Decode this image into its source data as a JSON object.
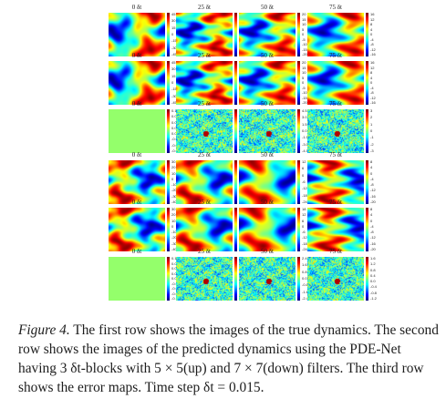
{
  "figure": {
    "time_labels": [
      "0 δt",
      "25 δt",
      "50 δt",
      "75 δt"
    ],
    "top_block": {
      "rows": [
        {
          "kind": "true",
          "panels": [
            {
              "scheme": "wave",
              "seed": 1,
              "ticks": [
                "45",
                "30",
                "15",
                "0",
                "-15",
                "-30",
                "-45"
              ]
            },
            {
              "scheme": "wave",
              "seed": 2,
              "ticks": [
                "24",
                "16",
                "8",
                "0",
                "-8",
                "-16",
                "-24",
                "-32"
              ]
            },
            {
              "scheme": "wave",
              "seed": 3,
              "ticks": [
                "20",
                "15",
                "10",
                "5",
                "0",
                "-5",
                "-10",
                "-15",
                "-20"
              ]
            },
            {
              "scheme": "wave",
              "seed": 4,
              "ticks": [
                "16",
                "12",
                "8",
                "4",
                "0",
                "-4",
                "-8",
                "-12",
                "-16"
              ]
            }
          ]
        },
        {
          "kind": "predicted",
          "panels": [
            {
              "scheme": "wave",
              "seed": 1,
              "ticks": [
                "45",
                "30",
                "15",
                "0",
                "-15",
                "-30",
                "-45"
              ]
            },
            {
              "scheme": "wave",
              "seed": 2,
              "ticks": [
                "24",
                "16",
                "8",
                "0",
                "-8",
                "-16",
                "-24",
                "-32"
              ]
            },
            {
              "scheme": "wave",
              "seed": 3,
              "ticks": [
                "20",
                "15",
                "10",
                "5",
                "0",
                "-5",
                "-10",
                "-15",
                "-20"
              ]
            },
            {
              "scheme": "wave",
              "seed": 4,
              "ticks": [
                "16",
                "12",
                "8",
                "4",
                "0",
                "-4",
                "-8",
                "-12",
                "-16"
              ]
            }
          ]
        },
        {
          "kind": "error",
          "panels": [
            {
              "scheme": "flat",
              "seed": 0,
              "ticks": [
                "0.100",
                "0.075",
                "0.050",
                "0.025",
                "0.000",
                "-0.025",
                "-0.050",
                "-0.075"
              ]
            },
            {
              "scheme": "noise",
              "seed": 5,
              "ticks": [
                "3",
                "2",
                "1",
                "0",
                "-1",
                "-2",
                "-3"
              ]
            },
            {
              "scheme": "noise",
              "seed": 6,
              "ticks": [
                "4.5",
                "3.0",
                "1.5",
                "0.0",
                "-1.5",
                "-3.0",
                "-4.5"
              ]
            },
            {
              "scheme": "noise",
              "seed": 7,
              "ticks": [
                "3",
                "2",
                "1",
                "0",
                "-1",
                "-2",
                "-3"
              ]
            }
          ]
        }
      ]
    },
    "bottom_block": {
      "rows": [
        {
          "kind": "true",
          "panels": [
            {
              "scheme": "wave",
              "seed": 11,
              "ticks": [
                "30",
                "20",
                "10",
                "0",
                "-10",
                "-20",
                "-30",
                "-40"
              ]
            },
            {
              "scheme": "wave",
              "seed": 12,
              "ticks": [
                "24",
                "16",
                "8",
                "0",
                "-8",
                "-16",
                "-24",
                "-32"
              ]
            },
            {
              "scheme": "wave",
              "seed": 13,
              "ticks": [
                "12",
                "6",
                "0",
                "-6",
                "-12",
                "-18",
                "-24"
              ]
            },
            {
              "scheme": "wave",
              "seed": 14,
              "ticks": [
                "8",
                "4",
                "0",
                "-4",
                "-8",
                "-12",
                "-16",
                "-20"
              ]
            }
          ]
        },
        {
          "kind": "predicted",
          "panels": [
            {
              "scheme": "wave",
              "seed": 11,
              "ticks": [
                "30",
                "20",
                "10",
                "0",
                "-10",
                "-20",
                "-30",
                "-40"
              ]
            },
            {
              "scheme": "wave",
              "seed": 12,
              "ticks": [
                "24",
                "16",
                "8",
                "0",
                "-8",
                "-16",
                "-24",
                "-32"
              ]
            },
            {
              "scheme": "wave",
              "seed": 13,
              "ticks": [
                "18",
                "12",
                "6",
                "0",
                "-6",
                "-12",
                "-18",
                "-24"
              ]
            },
            {
              "scheme": "wave",
              "seed": 14,
              "ticks": [
                "8",
                "4",
                "0",
                "-4",
                "-8",
                "-12",
                "-16",
                "-20"
              ]
            }
          ]
        },
        {
          "kind": "error",
          "panels": [
            {
              "scheme": "flat",
              "seed": 0,
              "ticks": [
                "0.100",
                "0.075",
                "0.050",
                "0.025",
                "0.000",
                "-0.025",
                "-0.050",
                "-0.075",
                "-0.100"
              ]
            },
            {
              "scheme": "noise",
              "seed": 15,
              "ticks": [
                "2.4",
                "1.6",
                "0.8",
                "0.0",
                "-0.8",
                "-1.6",
                "-2.4"
              ]
            },
            {
              "scheme": "noise",
              "seed": 16,
              "ticks": [
                "2.4",
                "1.6",
                "0.8",
                "0.0",
                "-0.8",
                "-1.6",
                "-2.4"
              ]
            },
            {
              "scheme": "noise",
              "seed": 17,
              "ticks": [
                "1.6",
                "1.2",
                "0.8",
                "0.4",
                "0.0",
                "-0.4",
                "-0.8",
                "-1.2"
              ]
            }
          ]
        }
      ]
    }
  },
  "caption": {
    "label": "Figure 4.",
    "text": " The first row shows the images of the true dynamics. The second row shows the images of the predicted dynamics using the PDE-Net having 3 δt-blocks with 5 × 5(up) and 7 × 7(down) filters. The third row shows the error maps. Time step δt = 0.015."
  }
}
